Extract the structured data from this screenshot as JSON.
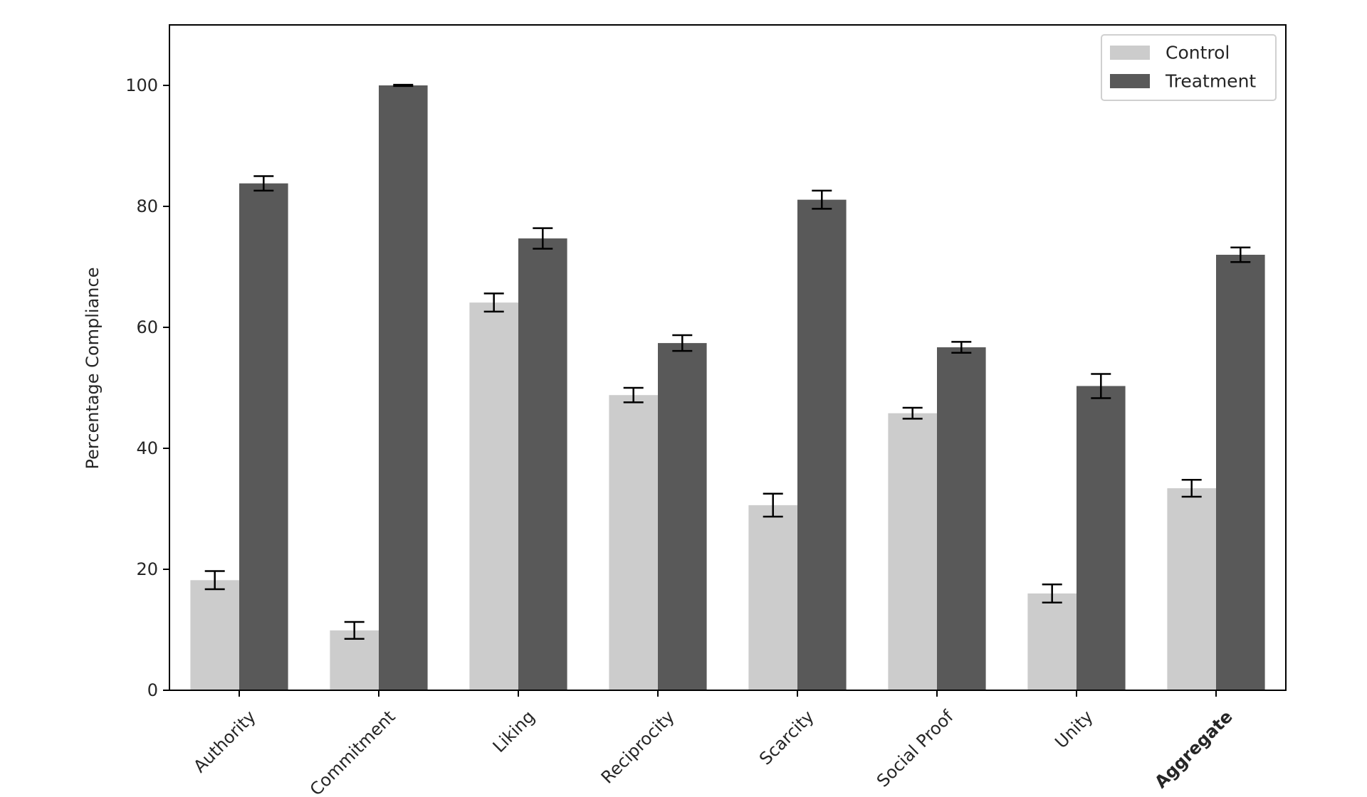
{
  "chart_data": {
    "type": "bar",
    "title": "",
    "xlabel": "",
    "ylabel": "Percentage Compliance",
    "ylim": [
      0,
      110
    ],
    "yticks": [
      0,
      20,
      40,
      60,
      80,
      100
    ],
    "grid": false,
    "legend_position": "top-right",
    "categories": [
      "Authority",
      "Commitment",
      "Liking",
      "Reciprocity",
      "Scarcity",
      "Social Proof",
      "Unity",
      "Aggregate"
    ],
    "bold_categories": [
      "Aggregate"
    ],
    "series": [
      {
        "name": "Control",
        "color": "#cccccc",
        "values": [
          18.2,
          9.9,
          64.1,
          48.8,
          30.6,
          45.8,
          16.0,
          33.4
        ],
        "errors": [
          1.5,
          1.4,
          1.5,
          1.2,
          1.9,
          0.9,
          1.5,
          1.4
        ]
      },
      {
        "name": "Treatment",
        "color": "#595959",
        "values": [
          83.8,
          100.0,
          74.7,
          57.4,
          81.1,
          56.7,
          50.3,
          72.0
        ],
        "errors": [
          1.2,
          0.1,
          1.7,
          1.3,
          1.5,
          0.9,
          2.0,
          1.2
        ]
      }
    ]
  }
}
